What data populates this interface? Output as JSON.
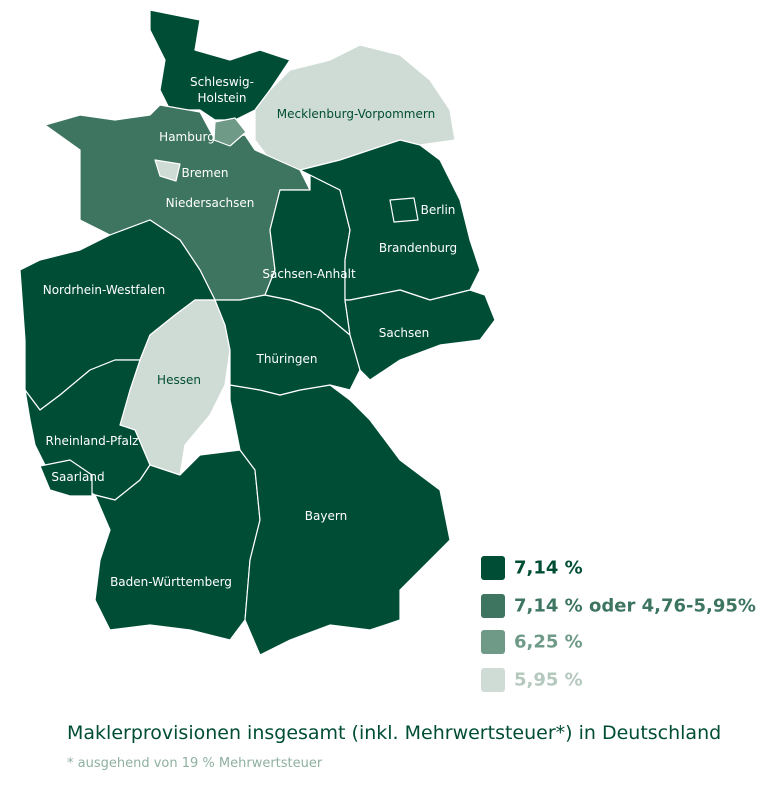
{
  "states": [
    {
      "name": "Schleswig-Holstein",
      "color": "#004d35"
    },
    {
      "name": "Mecklenburg-Vorpommern",
      "color": "#cfdcd5"
    },
    {
      "name": "Niedersachsen",
      "color": "#3d7560"
    },
    {
      "name": "Hamburg",
      "color": "#6f9a88"
    },
    {
      "name": "Bremen",
      "color": "#cfdcd5"
    },
    {
      "name": "Nordrhein-Westfalen",
      "color": "#004d35"
    },
    {
      "name": "Hessen",
      "color": "#cfdcd5"
    },
    {
      "name": "Rheinland-Pfalz",
      "color": "#004d35"
    },
    {
      "name": "Saarland",
      "color": "#004d35"
    },
    {
      "name": "Baden-Württemberg",
      "color": "#004d35"
    },
    {
      "name": "Bayern",
      "color": "#004d35"
    },
    {
      "name": "Thüringen",
      "color": "#004d35"
    },
    {
      "name": "Sachsen-Anhalt",
      "color": "#004d35"
    },
    {
      "name": "Brandenburg",
      "color": "#004d35"
    },
    {
      "name": "Berlin",
      "color": "#004d35"
    },
    {
      "name": "Sachsen",
      "color": "#004d35"
    }
  ],
  "legend": [
    {
      "label": "7,14 %",
      "color": "#004d35",
      "text_color": "#004d35"
    },
    {
      "label": "7,14 % oder 4,76-5,95%",
      "color": "#3d7560",
      "text_color": "#3d7560"
    },
    {
      "label": "6,25 %",
      "color": "#6f9a88",
      "text_color": "#6f9a88"
    },
    {
      "label": "5,95 %",
      "color": "#cfdcd5",
      "text_color": "#b5c8be"
    }
  ],
  "title": "Maklerprovisionen insgesamt (inkl. Mehrwertsteuer*) in Deutschland",
  "footnote": "* ausgehend von 19 % Mehrwertsteuer"
}
